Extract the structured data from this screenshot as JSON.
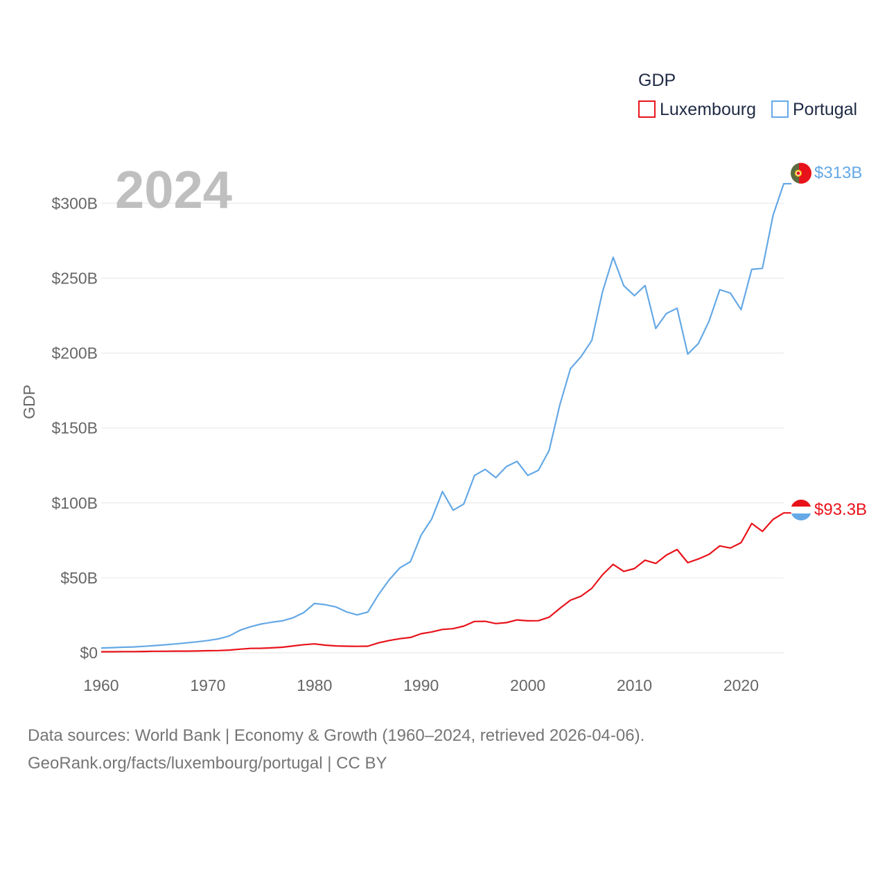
{
  "chart_data": {
    "type": "line",
    "title": "GDP",
    "year_label": "2024",
    "ylabel": "GDP",
    "xlabel": "",
    "xlim": [
      1960,
      2024
    ],
    "ylim": [
      0,
      320
    ],
    "y_ticks": [
      0,
      50,
      100,
      150,
      200,
      250,
      300
    ],
    "y_tick_labels": [
      "$0",
      "$50B",
      "$100B",
      "$150B",
      "$200B",
      "$250B",
      "$300B"
    ],
    "x_ticks": [
      1960,
      1970,
      1980,
      1990,
      2000,
      2010,
      2020
    ],
    "x_tick_labels": [
      "1960",
      "1970",
      "1980",
      "1990",
      "2000",
      "2010",
      "2020"
    ],
    "grid": true,
    "legend_position": "top-right",
    "x": [
      1960,
      1961,
      1962,
      1963,
      1964,
      1965,
      1966,
      1967,
      1968,
      1969,
      1970,
      1971,
      1972,
      1973,
      1974,
      1975,
      1976,
      1977,
      1978,
      1979,
      1980,
      1981,
      1982,
      1983,
      1984,
      1985,
      1986,
      1987,
      1988,
      1989,
      1990,
      1991,
      1992,
      1993,
      1994,
      1995,
      1996,
      1997,
      1998,
      1999,
      2000,
      2001,
      2002,
      2003,
      2004,
      2005,
      2006,
      2007,
      2008,
      2009,
      2010,
      2011,
      2012,
      2013,
      2014,
      2015,
      2016,
      2017,
      2018,
      2019,
      2020,
      2021,
      2022,
      2023,
      2024
    ],
    "series": [
      {
        "name": "Luxembourg",
        "color": "#e8121a",
        "end_label": "$93.3B",
        "values": [
          0.7,
          0.7,
          0.8,
          0.8,
          0.9,
          1.0,
          1.0,
          1.1,
          1.1,
          1.2,
          1.4,
          1.5,
          1.8,
          2.4,
          2.9,
          3.0,
          3.3,
          3.7,
          4.6,
          5.4,
          5.9,
          5.1,
          4.6,
          4.4,
          4.3,
          4.4,
          6.6,
          8.2,
          9.4,
          10.2,
          12.7,
          13.9,
          15.6,
          16.1,
          17.8,
          20.9,
          21.0,
          19.5,
          20.1,
          21.9,
          21.3,
          21.4,
          23.7,
          29.6,
          35.1,
          37.8,
          43.0,
          52.0,
          59.0,
          54.3,
          56.2,
          61.8,
          59.6,
          65.2,
          68.9,
          60.1,
          62.6,
          65.7,
          71.3,
          69.9,
          73.5,
          86.3,
          81.0,
          89.0,
          93.3
        ]
      },
      {
        "name": "Portugal",
        "color": "#64a8e6",
        "end_label": "$313B",
        "values": [
          3.2,
          3.4,
          3.7,
          3.9,
          4.3,
          4.8,
          5.3,
          5.9,
          6.6,
          7.3,
          8.2,
          9.3,
          11.2,
          15.0,
          17.4,
          19.2,
          20.4,
          21.3,
          23.4,
          26.8,
          32.9,
          32.1,
          30.6,
          27.3,
          25.3,
          27.2,
          38.8,
          48.6,
          56.6,
          60.8,
          78.5,
          89.4,
          107.6,
          95.1,
          99.3,
          118.3,
          122.4,
          116.9,
          124.3,
          127.7,
          118.4,
          121.8,
          135.0,
          165.3,
          189.6,
          197.7,
          208.4,
          240.8,
          263.9,
          245.0,
          238.3,
          245.1,
          216.4,
          226.4,
          229.9,
          199.3,
          206.4,
          221.4,
          242.3,
          240.0,
          229.0,
          255.9,
          256.5,
          292.0,
          313.0
        ]
      }
    ]
  },
  "footer": {
    "line1": "Data sources: World Bank | Economy & Growth (1960–2024, retrieved 2026-04-06).",
    "line2": "GeoRank.org/facts/luxembourg/portugal | CC BY"
  }
}
